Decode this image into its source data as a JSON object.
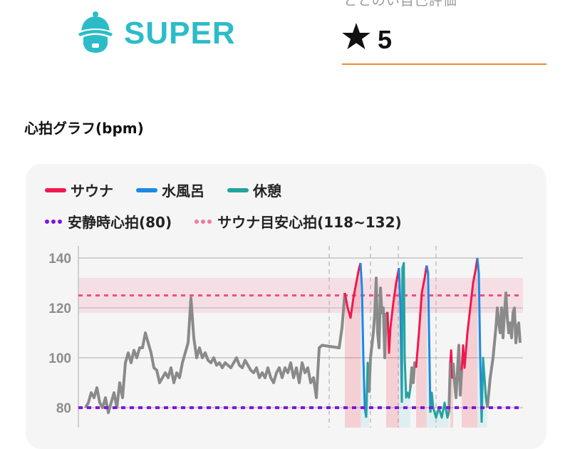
{
  "header": {
    "rating_label": "ととのい自己評価",
    "logo_text": "SUPER",
    "logo_icon": "sauna-hat-face-icon",
    "rating_icon": "star-icon",
    "rating_value": "5",
    "accent_color": "#f08a30",
    "logo_color": "#2cbcc8"
  },
  "graph": {
    "title": "心拍グラフ(bpm)",
    "legend": {
      "sauna": "サウナ",
      "water": "水風呂",
      "rest": "休憩",
      "resting_hr": "安静時心拍(80)",
      "sauna_target": "サウナ目安心拍(118~132)"
    }
  },
  "chart_data": {
    "type": "line",
    "title": "心拍グラフ(bpm)",
    "ylim": [
      72,
      143
    ],
    "yticks": [
      "80",
      "100",
      "120",
      "140"
    ],
    "ytick_values": [
      80,
      100,
      120,
      140
    ],
    "xlim": [
      -0.5,
      153
    ],
    "grid": true,
    "legend_position": "top",
    "colors": {
      "other": "#8a8a8a",
      "sauna": "#f0184f",
      "water": "#1e88e5",
      "rest": "#22a39f",
      "resting": "#7d16e0",
      "target": "#f0508a"
    },
    "resting_hr": 80,
    "sauna_target_range": [
      118,
      132
    ],
    "sauna_target_mid": 125,
    "separators": [
      85.5,
      100,
      109.75,
      123
    ],
    "segments": [
      {
        "phase": "other",
        "points": [
          [
            0,
            80
          ],
          [
            1,
            82
          ],
          [
            2,
            86
          ],
          [
            3,
            84
          ],
          [
            4,
            88
          ],
          [
            5,
            82
          ],
          [
            6,
            80
          ],
          [
            7,
            84
          ],
          [
            8,
            78
          ],
          [
            9,
            82
          ],
          [
            10,
            86
          ],
          [
            11,
            80
          ],
          [
            12,
            90
          ],
          [
            13,
            84
          ],
          [
            14,
            98
          ],
          [
            15,
            102
          ],
          [
            16,
            98
          ],
          [
            17,
            103
          ],
          [
            18,
            100
          ],
          [
            19,
            104
          ],
          [
            20,
            104
          ],
          [
            21,
            110
          ],
          [
            22,
            106
          ],
          [
            23,
            102
          ],
          [
            24,
            96
          ],
          [
            25,
            95
          ],
          [
            26,
            90
          ],
          [
            27,
            92
          ],
          [
            28,
            94
          ],
          [
            29,
            92
          ],
          [
            30,
            96
          ],
          [
            31,
            90
          ],
          [
            32,
            94
          ],
          [
            33,
            92
          ],
          [
            34,
            98
          ],
          [
            35,
            102
          ],
          [
            36,
            106
          ],
          [
            37,
            124
          ],
          [
            38,
            108
          ],
          [
            39,
            100
          ],
          [
            40,
            104
          ],
          [
            41,
            100
          ],
          [
            42,
            102
          ],
          [
            43,
            99
          ],
          [
            44,
            98
          ],
          [
            45,
            100
          ],
          [
            46,
            97
          ],
          [
            47,
            98
          ],
          [
            48,
            96
          ],
          [
            49,
            98
          ],
          [
            50,
            97
          ],
          [
            51,
            96
          ],
          [
            52,
            98
          ],
          [
            53,
            100
          ],
          [
            54,
            97
          ],
          [
            55,
            96
          ],
          [
            56,
            99
          ],
          [
            57,
            97
          ],
          [
            58,
            95
          ],
          [
            59,
            94
          ],
          [
            60,
            96
          ],
          [
            61,
            92
          ],
          [
            62,
            94
          ],
          [
            63,
            92
          ],
          [
            64,
            96
          ],
          [
            65,
            92
          ],
          [
            66,
            90
          ],
          [
            67,
            94
          ],
          [
            68,
            96
          ],
          [
            69,
            92
          ],
          [
            70,
            96
          ],
          [
            71,
            94
          ],
          [
            72,
            98
          ],
          [
            73,
            92
          ],
          [
            74,
            96
          ],
          [
            75,
            90
          ],
          [
            76,
            98
          ],
          [
            77,
            94
          ],
          [
            78,
            96
          ],
          [
            79,
            90
          ],
          [
            80,
            92
          ],
          [
            81,
            84
          ],
          [
            82,
            104
          ],
          [
            83,
            105
          ],
          [
            89,
            104
          ],
          [
            90,
            112
          ],
          [
            91,
            126
          ]
        ]
      },
      {
        "phase": "sauna",
        "points": [
          [
            91,
            126
          ],
          [
            92,
            120
          ],
          [
            93,
            116
          ],
          [
            94,
            124
          ],
          [
            95,
            130
          ],
          [
            96,
            136
          ],
          [
            96.5,
            138
          ]
        ]
      },
      {
        "phase": "water",
        "points": [
          [
            96.5,
            138
          ],
          [
            97,
            128
          ],
          [
            97.5,
            100
          ],
          [
            98,
            80
          ],
          [
            98.5,
            76
          ]
        ]
      },
      {
        "phase": "rest",
        "points": [
          [
            98.5,
            76
          ],
          [
            99,
            98
          ],
          [
            99.5,
            86
          ]
        ]
      },
      {
        "phase": "other",
        "points": [
          [
            99.5,
            86
          ],
          [
            100,
            100
          ],
          [
            101,
            110
          ],
          [
            101.5,
            118
          ],
          [
            102,
            132
          ],
          [
            102.5,
            110
          ],
          [
            103,
            104
          ],
          [
            103.5,
            128
          ],
          [
            104,
            118
          ],
          [
            104.5,
            120
          ],
          [
            105,
            100
          ],
          [
            105.5,
            118
          ]
        ]
      },
      {
        "phase": "sauna",
        "points": [
          [
            105.5,
            118
          ],
          [
            106,
            118
          ],
          [
            106.5,
            102
          ],
          [
            107,
            112
          ],
          [
            108,
            122
          ],
          [
            109,
            130
          ],
          [
            110,
            136
          ]
        ]
      },
      {
        "phase": "water",
        "points": [
          [
            110,
            136
          ],
          [
            110.5,
            120
          ],
          [
            111,
            82
          ]
        ]
      },
      {
        "phase": "rest",
        "points": [
          [
            111,
            82
          ],
          [
            111.2,
            136
          ],
          [
            111.7,
            138
          ],
          [
            112,
            100
          ],
          [
            112.5,
            84
          ],
          [
            113,
            86
          ],
          [
            113.5,
            84
          ],
          [
            114,
            88
          ]
        ]
      },
      {
        "phase": "other",
        "points": [
          [
            114,
            88
          ],
          [
            114.5,
            96
          ],
          [
            115,
            90
          ],
          [
            115.5,
            98
          ],
          [
            116,
            96
          ]
        ]
      },
      {
        "phase": "sauna",
        "points": [
          [
            116,
            96
          ],
          [
            117,
            110
          ],
          [
            118,
            126
          ],
          [
            119,
            132
          ],
          [
            119.7,
            137
          ]
        ]
      },
      {
        "phase": "water",
        "points": [
          [
            119.7,
            137
          ],
          [
            120.2,
            134
          ],
          [
            120.7,
            100
          ],
          [
            121,
            78
          ]
        ]
      },
      {
        "phase": "rest",
        "points": [
          [
            121,
            78
          ],
          [
            121.5,
            86
          ],
          [
            122,
            80
          ],
          [
            123,
            76
          ],
          [
            124,
            80
          ],
          [
            125,
            76
          ],
          [
            126,
            82
          ],
          [
            127,
            76
          ],
          [
            127.5,
            78
          ]
        ]
      },
      {
        "phase": "other",
        "points": [
          [
            127.5,
            78
          ],
          [
            128,
            98
          ]
        ]
      },
      {
        "phase": "sauna",
        "points": [
          [
            128,
            98
          ],
          [
            128.3,
            103
          ],
          [
            128.7,
            92
          ],
          [
            129,
            98
          ]
        ]
      },
      {
        "phase": "other",
        "points": [
          [
            129,
            98
          ],
          [
            129.5,
            90
          ],
          [
            130,
            84
          ],
          [
            131,
            105
          ],
          [
            131.5,
            85
          ],
          [
            132,
            95
          ]
        ]
      },
      {
        "phase": "sauna",
        "points": [
          [
            132,
            95
          ],
          [
            132.5,
            105
          ],
          [
            133,
            96
          ],
          [
            134,
            110
          ],
          [
            135,
            120
          ],
          [
            136,
            130
          ],
          [
            137,
            136
          ],
          [
            137.5,
            140
          ]
        ]
      },
      {
        "phase": "water",
        "points": [
          [
            137.5,
            140
          ],
          [
            138,
            134
          ],
          [
            138.5,
            100
          ],
          [
            139,
            74
          ]
        ]
      },
      {
        "phase": "rest",
        "points": [
          [
            139,
            74
          ],
          [
            139.5,
            100
          ],
          [
            140,
            92
          ],
          [
            140.5,
            84
          ],
          [
            141,
            80
          ]
        ]
      },
      {
        "phase": "other",
        "points": [
          [
            141,
            80
          ],
          [
            142,
            92
          ],
          [
            143,
            100
          ],
          [
            144,
            112
          ],
          [
            144.5,
            120
          ],
          [
            145,
            114
          ],
          [
            145.5,
            110
          ],
          [
            146,
            120
          ],
          [
            146.5,
            108
          ],
          [
            147,
            118
          ],
          [
            147.5,
            126
          ],
          [
            148,
            116
          ],
          [
            148.5,
            110
          ],
          [
            149,
            114
          ],
          [
            149.5,
            108
          ],
          [
            150,
            118
          ],
          [
            150.5,
            120
          ],
          [
            151,
            106
          ],
          [
            151.5,
            112
          ],
          [
            152,
            114
          ],
          [
            152.5,
            106
          ]
        ]
      }
    ]
  }
}
